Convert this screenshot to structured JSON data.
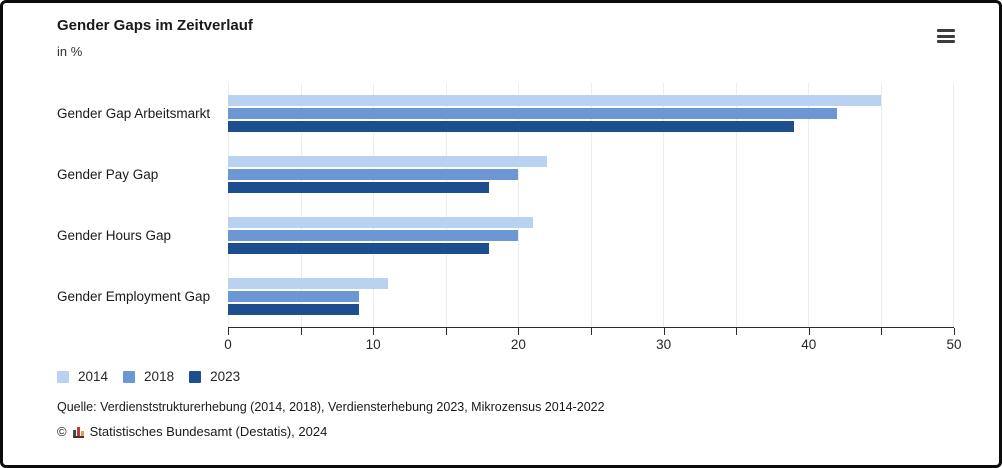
{
  "header": {
    "title": "Gender Gaps im Zeitverlauf",
    "subtitle": "in %",
    "menu_icon": "hamburger-icon"
  },
  "chart_data": {
    "type": "bar",
    "orientation": "horizontal",
    "title": "Gender Gaps im Zeitverlauf",
    "subtitle": "in %",
    "unit": "%",
    "categories": [
      "Gender Gap Arbeitsmarkt",
      "Gender Pay Gap",
      "Gender Hours Gap",
      "Gender Employment Gap"
    ],
    "series": [
      {
        "name": "2014",
        "color": "#b9d2f1",
        "values": [
          45,
          22,
          21,
          11
        ]
      },
      {
        "name": "2018",
        "color": "#6d96d4",
        "values": [
          42,
          20,
          20,
          9
        ]
      },
      {
        "name": "2023",
        "color": "#1d4e8d",
        "values": [
          39,
          18,
          18,
          9
        ]
      }
    ],
    "xlim": [
      0,
      50
    ],
    "x_major_ticks": [
      0,
      10,
      20,
      30,
      40,
      50
    ],
    "x_minor_ticks": [
      5,
      15,
      25,
      35,
      45
    ],
    "grid": true,
    "gridline_step": 5,
    "legend_position": "bottom-left"
  },
  "footer": {
    "source": "Quelle: Verdienststrukturerhebung (2014, 2018), Verdiensterhebung 2023, Mikrozensus 2014-2022",
    "copyright_symbol": "©",
    "copyright_text": "Statistisches Bundesamt (Destatis), 2024",
    "logo_icon": "destatis-bars-icon"
  },
  "colors": {
    "series_2014": "#b9d2f1",
    "series_2018": "#6d96d4",
    "series_2023": "#1d4e8d",
    "gridline": "#ececec",
    "axis": "#2b2b2b",
    "text": "#1a1a1a",
    "border": "#0c0c0c"
  }
}
